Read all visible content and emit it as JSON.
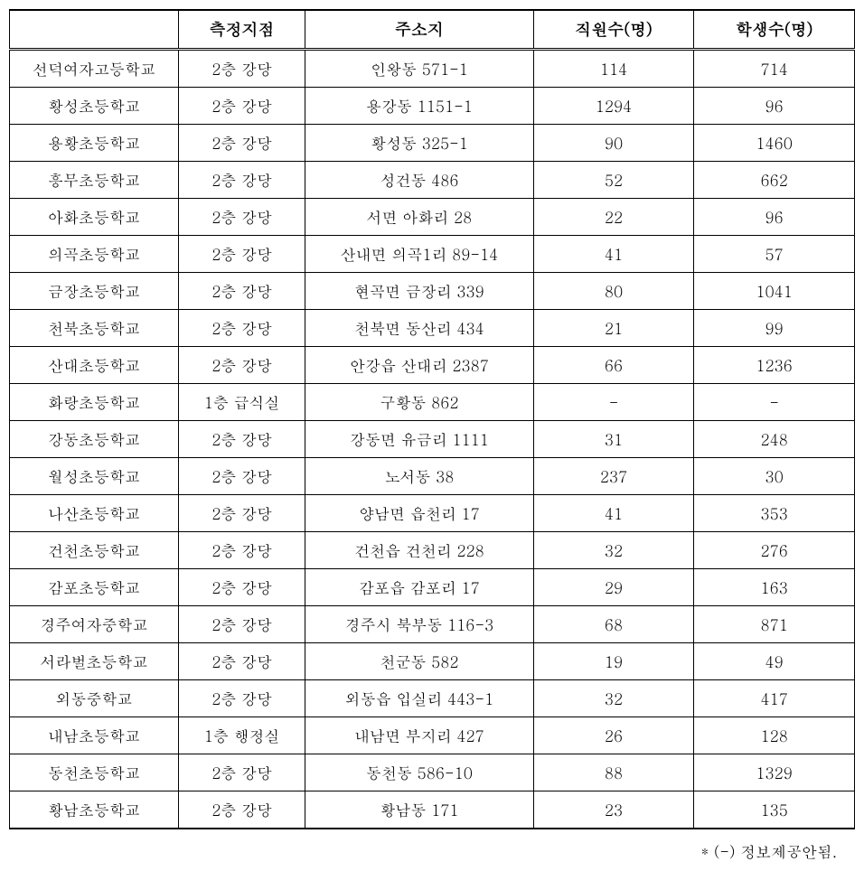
{
  "table": {
    "type": "table",
    "background_color": "#ffffff",
    "border_color": "#000000",
    "text_color": "#000000",
    "header_fontsize": 18,
    "cell_fontsize": 17,
    "header_fontweight": "bold",
    "columns": [
      {
        "key": "name",
        "label": "",
        "width": "20%",
        "align": "center"
      },
      {
        "key": "point",
        "label": "측정지점",
        "width": "15%",
        "align": "center"
      },
      {
        "key": "address",
        "label": "주소지",
        "width": "27%",
        "align": "center"
      },
      {
        "key": "staff",
        "label": "직원수(명)",
        "width": "19%",
        "align": "center"
      },
      {
        "key": "students",
        "label": "학생수(명)",
        "width": "19%",
        "align": "center"
      }
    ],
    "rows": [
      {
        "name": "선덕여자고등학교",
        "point": "2층 강당",
        "address": "인왕동 571-1",
        "staff": "114",
        "students": "714"
      },
      {
        "name": "황성초등학교",
        "point": "2층 강당",
        "address": "용강동 1151-1",
        "staff": "1294",
        "students": "96"
      },
      {
        "name": "용황초등학교",
        "point": "2층 강당",
        "address": "황성동 325-1",
        "staff": "90",
        "students": "1460"
      },
      {
        "name": "흥무초등학교",
        "point": "2층 강당",
        "address": "성건동 486",
        "staff": "52",
        "students": "662"
      },
      {
        "name": "아화초등학교",
        "point": "2층 강당",
        "address": "서면 아화리 28",
        "staff": "22",
        "students": "96"
      },
      {
        "name": "의곡초등학교",
        "point": "2층 강당",
        "address": "산내면 의곡1리 89-14",
        "staff": "41",
        "students": "57"
      },
      {
        "name": "금장초등학교",
        "point": "2층 강당",
        "address": "현곡면 금장리 339",
        "staff": "80",
        "students": "1041"
      },
      {
        "name": "천북초등학교",
        "point": "2층 강당",
        "address": "천북면 동산리  434",
        "staff": "21",
        "students": "99"
      },
      {
        "name": "산대초등학교",
        "point": "2층 강당",
        "address": "안강읍 산대리 2387",
        "staff": "66",
        "students": "1236"
      },
      {
        "name": "화랑초등학교",
        "point": "1층 급식실",
        "address": "구황동 862",
        "staff": "-",
        "students": "-"
      },
      {
        "name": "강동초등학교",
        "point": "2층 강당",
        "address": "강동면 유금리 1111",
        "staff": "31",
        "students": "248"
      },
      {
        "name": "월성초등학교",
        "point": "2층 강당",
        "address": "노서동 38",
        "staff": "237",
        "students": "30"
      },
      {
        "name": "나산초등학교",
        "point": "2층 강당",
        "address": "양남면 읍천리 17",
        "staff": "41",
        "students": "353"
      },
      {
        "name": "건천초등학교",
        "point": "2층 강당",
        "address": "건천읍 건천리 228",
        "staff": "32",
        "students": "276"
      },
      {
        "name": "감포초등학교",
        "point": "2층 강당",
        "address": "감포읍 감포리 17",
        "staff": "29",
        "students": "163"
      },
      {
        "name": "경주여자중학교",
        "point": "2층 강당",
        "address": "경주시 북부동 116-3",
        "staff": "68",
        "students": "871"
      },
      {
        "name": "서라벌초등학교",
        "point": "2층 강당",
        "address": "천군동 582",
        "staff": "19",
        "students": "49"
      },
      {
        "name": "외동중학교",
        "point": "2층 강당",
        "address": "외동읍 입실리 443-1",
        "staff": "32",
        "students": "417"
      },
      {
        "name": "내남초등학교",
        "point": "1층 행정실",
        "address": "내남면 부지리 427",
        "staff": "26",
        "students": "128"
      },
      {
        "name": "동천초등학교",
        "point": "2층 강당",
        "address": "동천동 586-10",
        "staff": "88",
        "students": "1329"
      },
      {
        "name": "황남초등학교",
        "point": "2층 강당",
        "address": "황남동 171",
        "staff": "23",
        "students": "135"
      }
    ]
  },
  "footnote": "* (-) 정보제공안됨."
}
